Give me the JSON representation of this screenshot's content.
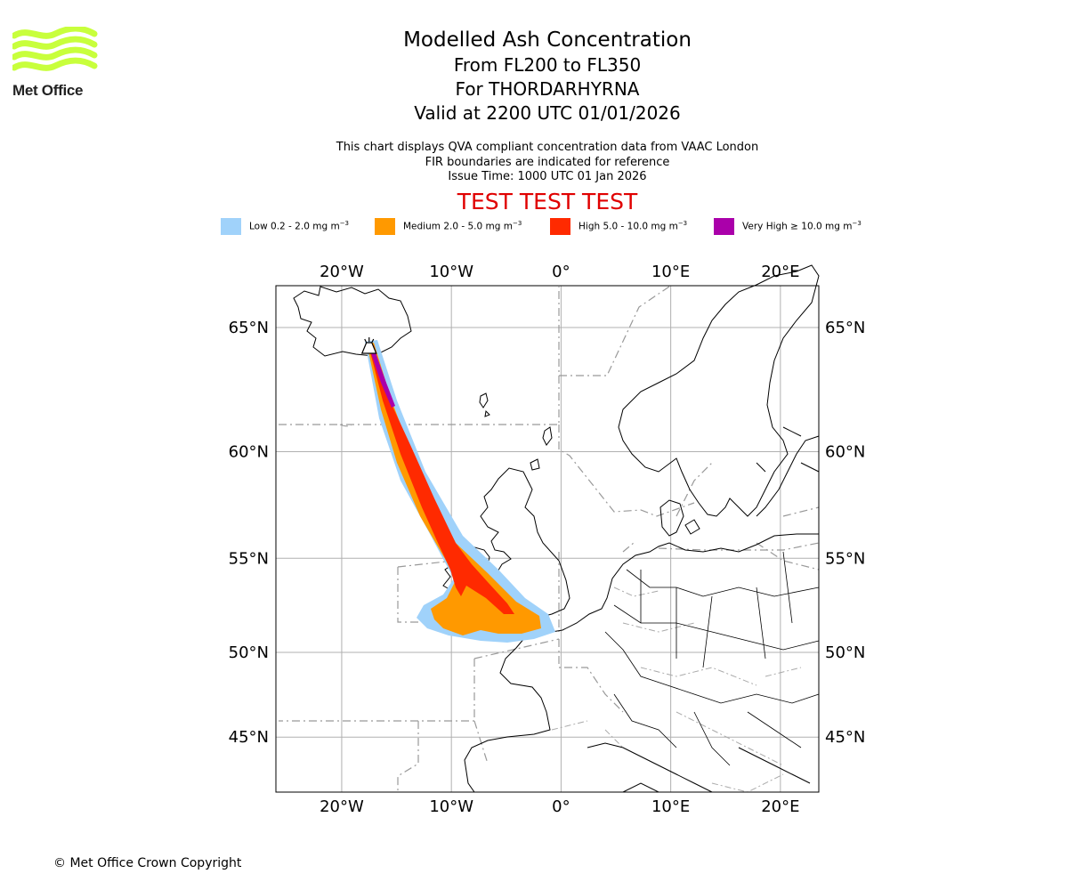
{
  "logo": {
    "text": "Met Office",
    "color": "#c8ff3c"
  },
  "title": {
    "line1": "Modelled Ash Concentration",
    "line2": "From FL200 to FL350",
    "line3": "For THORDARHYRNA",
    "line4": "Valid at 2200 UTC 01/01/2026"
  },
  "subtitle": {
    "line1": "This chart displays QVA compliant concentration data from VAAC London",
    "line2": "FIR boundaries are indicated for reference",
    "line3": "Issue Time: 1000 UTC 01 Jan 2026"
  },
  "test_banner": "TEST TEST TEST",
  "legend": [
    {
      "label": "Low 0.2 - 2.0 mg m",
      "color": "#a0d2fa"
    },
    {
      "label": "Medium 2.0 - 5.0 mg m",
      "color": "#ff9900"
    },
    {
      "label": "High 5.0 - 10.0 mg m",
      "color": "#ff2a00"
    },
    {
      "label": "Very High ≥ 10.0 mg m",
      "color": "#aa00aa"
    }
  ],
  "legend_unit_exp": "−3",
  "map": {
    "lon_ticks": [
      {
        "value": -20,
        "label": "20°W"
      },
      {
        "value": -10,
        "label": "10°W"
      },
      {
        "value": 0,
        "label": "0°"
      },
      {
        "value": 10,
        "label": "10°E"
      },
      {
        "value": 20,
        "label": "20°E"
      }
    ],
    "lat_ticks": [
      {
        "value": 65,
        "label": "65°N"
      },
      {
        "value": 60,
        "label": "60°N"
      },
      {
        "value": 55,
        "label": "55°N"
      },
      {
        "value": 50,
        "label": "50°N"
      },
      {
        "value": 45,
        "label": "45°N"
      }
    ],
    "extent": {
      "lon_min": -26,
      "lon_max": 23.5,
      "lat_min": 41.5,
      "lat_max": 66.5
    },
    "volcano": {
      "lon": -17.5,
      "lat": 64.3
    }
  },
  "copyright": "© Met Office Crown Copyright"
}
